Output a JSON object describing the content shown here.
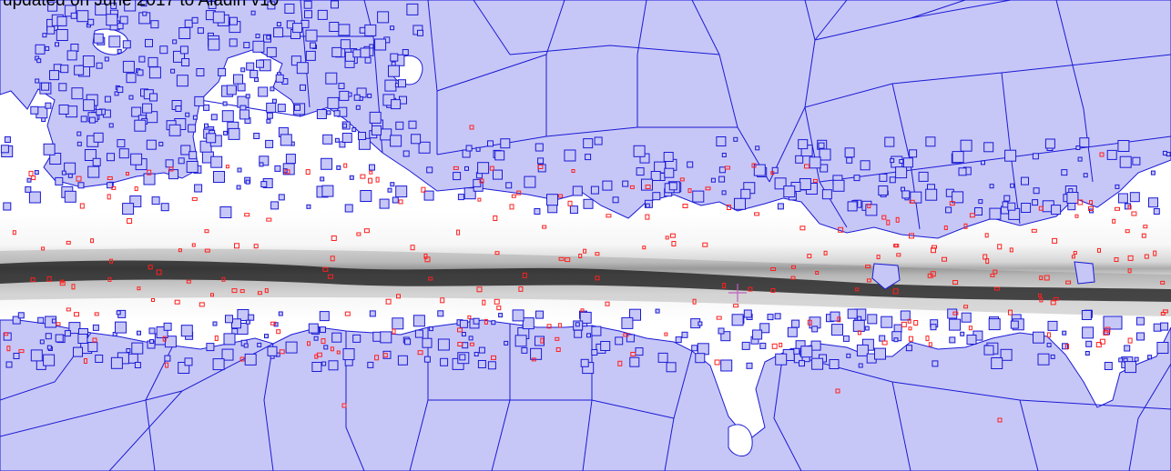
{
  "caption": "updated on June 2017 to Aladin v10",
  "colors": {
    "coverage_fill": "#c7c7f7",
    "coverage_edge": "#1a1ad6",
    "sources": "#ff1f1f",
    "cursor": "#c060c0",
    "plane_dark": "#050505",
    "background": "#ffffff"
  },
  "icons": {
    "cursor": "crosshair-icon"
  }
}
